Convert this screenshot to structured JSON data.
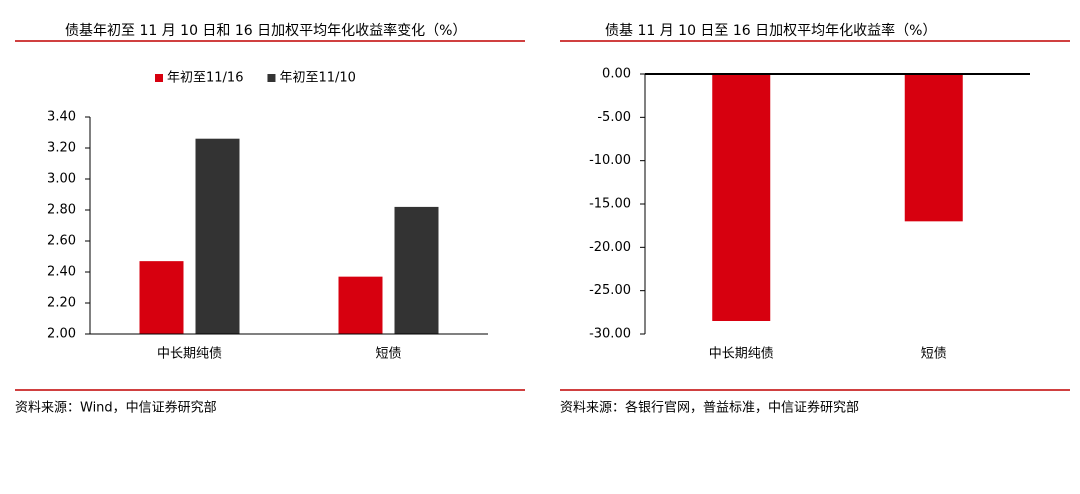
{
  "chart_data": [
    {
      "type": "bar",
      "title": "债基年初至 11 月 10 日和 16 日加权平均年化收益率变化（%）",
      "categories": [
        "中长期纯债",
        "短债"
      ],
      "series": [
        {
          "name": "年初至11/16",
          "color": "#d7000f",
          "values": [
            2.47,
            2.37
          ]
        },
        {
          "name": "年初至11/10",
          "color": "#333333",
          "values": [
            3.26,
            2.82
          ]
        }
      ],
      "ylim": [
        2,
        3.4
      ],
      "yticks": [
        {
          "value": 2,
          "label": "2.00"
        },
        {
          "value": 2.2,
          "label": "2.20"
        },
        {
          "value": 2.4,
          "label": "2.40"
        },
        {
          "value": 2.6,
          "label": "2.60"
        },
        {
          "value": 2.8,
          "label": "2.80"
        },
        {
          "value": 3,
          "label": "3.00"
        },
        {
          "value": 3.2,
          "label": "3.20"
        },
        {
          "value": 3.4,
          "label": "3.40"
        }
      ],
      "legend": "top",
      "source": "资料来源：Wind，中信证券研究部"
    },
    {
      "type": "bar",
      "title": "债基 11 月 10 日至 16 日加权平均年化收益率（%）",
      "categories": [
        "中长期纯债",
        "短债"
      ],
      "values": [
        -28.5,
        -17.0
      ],
      "color": "#d7000f",
      "ylim": [
        -30,
        0
      ],
      "yticks": [
        {
          "value": 0,
          "label": "0.00"
        },
        {
          "value": -5,
          "label": "-5.00"
        },
        {
          "value": -10,
          "label": "-10.00"
        },
        {
          "value": -15,
          "label": "-15.00"
        },
        {
          "value": -20,
          "label": "-20.00"
        },
        {
          "value": -25,
          "label": "-25.00"
        },
        {
          "value": -30,
          "label": "-30.00"
        }
      ],
      "source": "资料来源：各银行官网，普益标准，中信证券研究部"
    }
  ]
}
